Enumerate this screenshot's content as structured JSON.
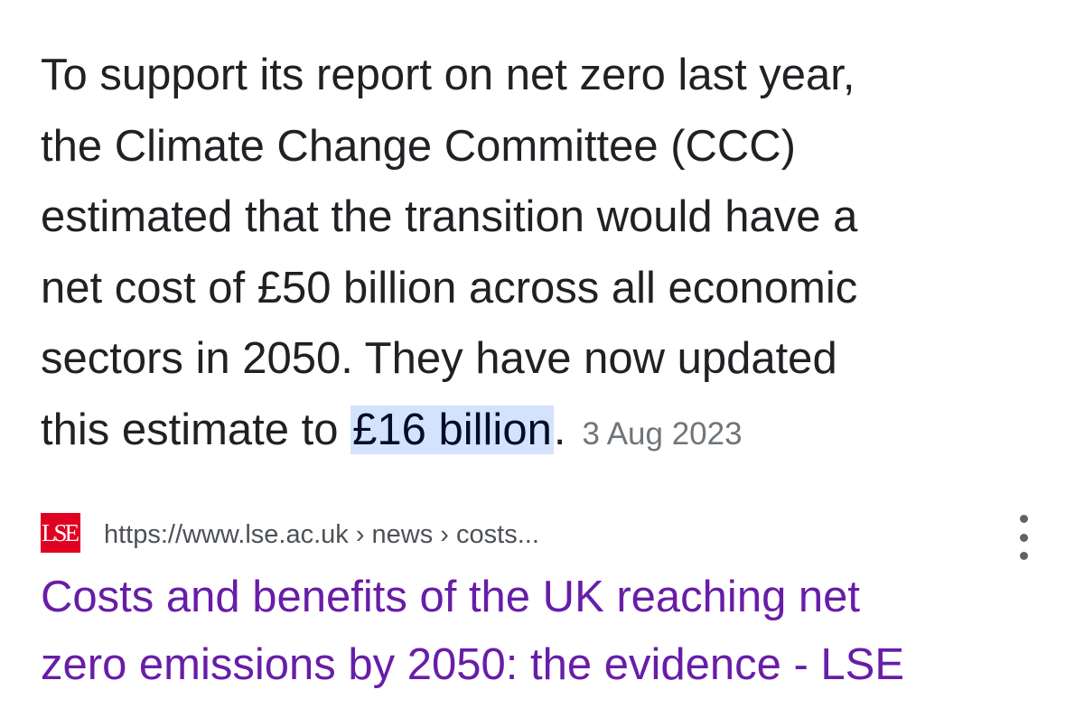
{
  "snippet": {
    "lines": [
      "To support its report on net zero last year,",
      "the Climate Change Committee (CCC)",
      "estimated that the transition would have a",
      "net cost of £50 billion across all economic",
      "sectors in 2050. They have now updated"
    ],
    "last_line_prefix": "this estimate to ",
    "highlight": "£16 billion",
    "last_line_suffix": ".",
    "date": "3 Aug 2023"
  },
  "source": {
    "favicon_text": "LSE",
    "favicon_color": "#e00022",
    "url": "https://www.lse.ac.uk › news › costs...",
    "menu_icon": "more-vert-icon"
  },
  "result": {
    "title_lines": [
      "Costs and benefits of the UK reaching net",
      "zero emissions by 2050: the evidence - LSE"
    ],
    "title_color": "#681da8"
  }
}
